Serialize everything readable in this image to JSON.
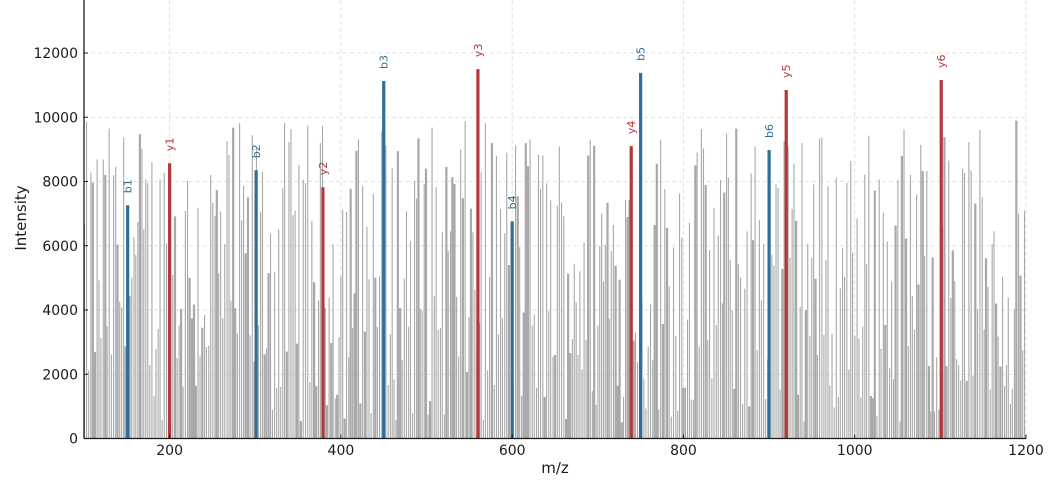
{
  "chart_data": {
    "type": "bar",
    "subtype": "mass-spectrum-stick-plot",
    "title": "",
    "xlabel": "m/z",
    "ylabel": "Intensity",
    "xlim": [
      100,
      1200
    ],
    "ylim": [
      0,
      13500
    ],
    "xticks": [
      200,
      400,
      600,
      800,
      1000,
      1200
    ],
    "yticks": [
      0,
      2000,
      4000,
      6000,
      8000,
      10000,
      12000
    ],
    "grid": true,
    "legend": null,
    "colors": {
      "background_peaks": "#a8a8a8",
      "b_ions": "#2f6f96",
      "y_ions": "#b5363b",
      "grid": "#d9d9d9",
      "axis": "#1a1a1a"
    },
    "series": [
      {
        "name": "b ions",
        "color": "#2f6f96",
        "points": [
          {
            "label": "b1",
            "mz": 151,
            "intensity": 7260
          },
          {
            "label": "b2",
            "mz": 301,
            "intensity": 8350
          },
          {
            "label": "b3",
            "mz": 450,
            "intensity": 11130
          },
          {
            "label": "b4",
            "mz": 600,
            "intensity": 6760
          },
          {
            "label": "b5",
            "mz": 750,
            "intensity": 11380
          },
          {
            "label": "b6",
            "mz": 900,
            "intensity": 8980
          }
        ]
      },
      {
        "name": "y ions",
        "color": "#b5363b",
        "points": [
          {
            "label": "y1",
            "mz": 200,
            "intensity": 8570
          },
          {
            "label": "y2",
            "mz": 379,
            "intensity": 7820
          },
          {
            "label": "y3",
            "mz": 560,
            "intensity": 11500
          },
          {
            "label": "y4",
            "mz": 739,
            "intensity": 9100
          },
          {
            "label": "y5",
            "mz": 920,
            "intensity": 10850
          },
          {
            "label": "y6",
            "mz": 1101,
            "intensity": 11160
          }
        ]
      },
      {
        "name": "background noise peaks",
        "color": "#a8a8a8",
        "description": "dense unannotated peaks roughly every 2 m/z from 100 to 1200, intensities ~0-9900",
        "range_mz": [
          100,
          1200
        ],
        "range_intensity": [
          0,
          9900
        ]
      }
    ],
    "annotations": [
      "b1",
      "b2",
      "b3",
      "b4",
      "b5",
      "b6",
      "y1",
      "y2",
      "y3",
      "y4",
      "y5",
      "y6"
    ]
  }
}
